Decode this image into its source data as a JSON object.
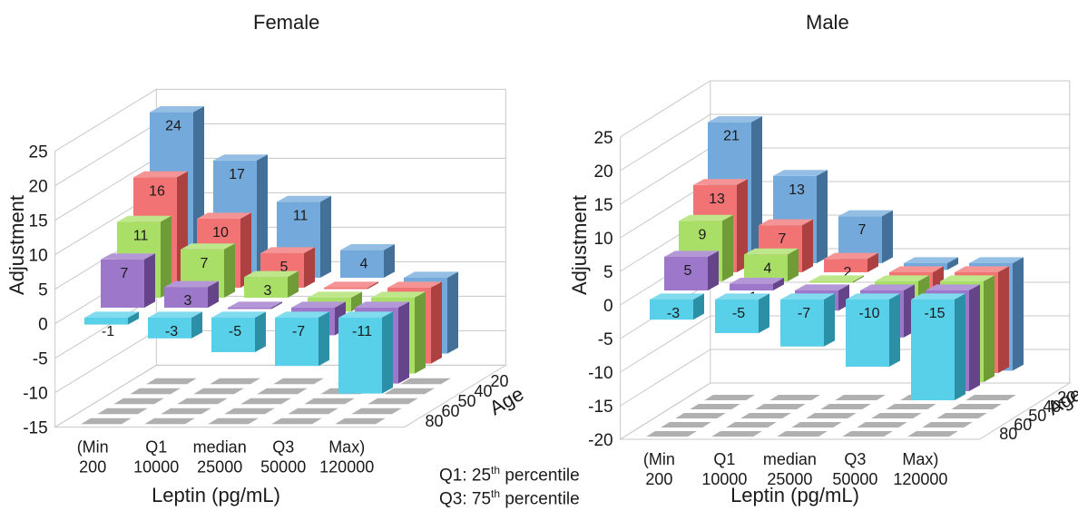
{
  "footnotes": [
    {
      "name": "footnote-q1",
      "prefix": "Q1: 25",
      "sup": "th",
      "suffix": " percentile"
    },
    {
      "name": "footnote-q3",
      "prefix": "Q3: 75",
      "sup": "th",
      "suffix": " percentile"
    }
  ],
  "colors": {
    "20": "#5b9bd5",
    "40": "#f05a5a",
    "50": "#9bd94c",
    "60": "#8c5fc0",
    "80": "#3cc8e6",
    "floor": "#b0b0b0",
    "grid": "#c8c8c8"
  },
  "chart_data": [
    {
      "type": "bar",
      "title": "Female",
      "xlabel": "Leptin (pg/mL)",
      "ylabel": "Adjustment",
      "zlabel": "Age",
      "categories": [
        [
          "(Min",
          "200"
        ],
        [
          "Q1",
          "10000"
        ],
        [
          "median",
          "25000"
        ],
        [
          "Q3",
          "50000"
        ],
        [
          "Max)",
          "120000"
        ]
      ],
      "yticks": [
        25,
        20,
        15,
        10,
        5,
        0,
        -5,
        -10,
        -15
      ],
      "ylim": [
        -15,
        25
      ],
      "grid": true,
      "series": [
        {
          "name": "20",
          "values": [
            24,
            17,
            11,
            4,
            -11
          ]
        },
        {
          "name": "40",
          "values": [
            16,
            10,
            5,
            0,
            -11
          ]
        },
        {
          "name": "50",
          "values": [
            11,
            7,
            3,
            -2,
            -11
          ]
        },
        {
          "name": "60",
          "values": [
            7,
            3,
            0,
            -4,
            -11
          ]
        },
        {
          "name": "80",
          "values": [
            -1,
            -3,
            -5,
            -7,
            -11
          ]
        }
      ]
    },
    {
      "type": "bar",
      "title": "Male",
      "xlabel": "Leptin (pg/mL)",
      "ylabel": "Adjustment",
      "zlabel": "Age",
      "categories": [
        [
          "(Min",
          "200"
        ],
        [
          "Q1",
          "10000"
        ],
        [
          "median",
          "25000"
        ],
        [
          "Q3",
          "50000"
        ],
        [
          "Max)",
          "120000"
        ]
      ],
      "yticks": [
        25,
        20,
        15,
        10,
        5,
        0,
        -5,
        -10,
        -15,
        -20
      ],
      "ylim": [
        -20,
        25
      ],
      "grid": true,
      "series": [
        {
          "name": "20",
          "values": [
            21,
            13,
            7,
            -1,
            -16
          ]
        },
        {
          "name": "40",
          "values": [
            13,
            7,
            2,
            -4,
            -15
          ]
        },
        {
          "name": "50",
          "values": [
            9,
            4,
            0,
            -5,
            -15
          ]
        },
        {
          "name": "60",
          "values": [
            5,
            1,
            -3,
            -7,
            -15
          ]
        },
        {
          "name": "80",
          "values": [
            -3,
            -5,
            -7,
            -10,
            -15
          ]
        }
      ]
    }
  ]
}
